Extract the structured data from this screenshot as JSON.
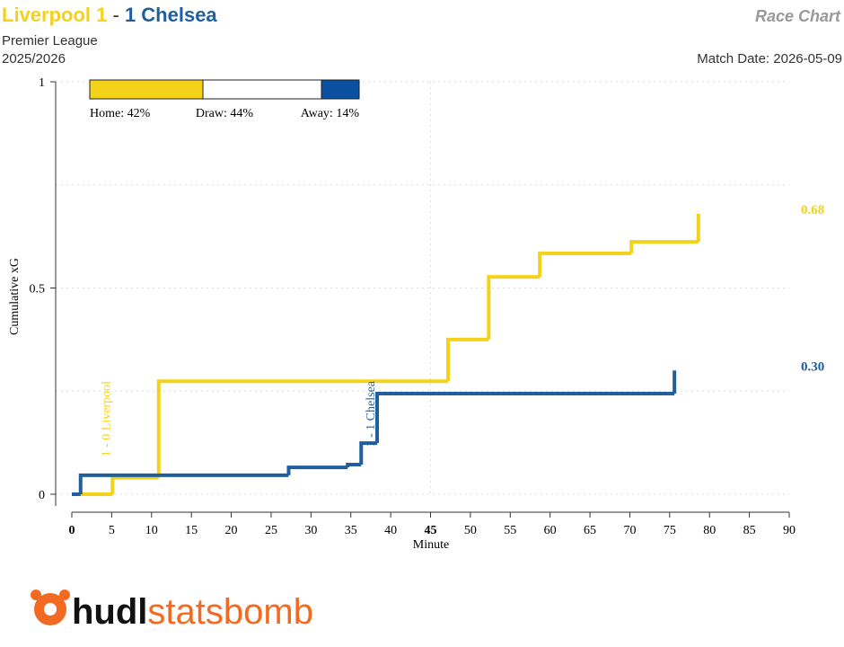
{
  "chart_data": {
    "type": "step",
    "title": {
      "home": "Liverpool 1",
      "separator": "-",
      "away": "1 Chelsea"
    },
    "chart_name": "Race Chart",
    "competition": "Premier League",
    "season": "2025/2026",
    "match_date": "Match Date: 2026-05-09",
    "xlabel": "Minute",
    "ylabel": "Cumulative xG",
    "xlim": [
      0,
      90
    ],
    "ylim": [
      0,
      1
    ],
    "xticks": [
      0,
      5,
      10,
      15,
      20,
      25,
      30,
      35,
      40,
      45,
      50,
      55,
      60,
      65,
      70,
      75,
      80,
      85,
      90
    ],
    "bold_xticks": [
      0,
      45
    ],
    "yticks": [
      0,
      0.5,
      1
    ],
    "ygrid": [
      0,
      0.25,
      0.5,
      0.75,
      1
    ],
    "xgrid": [
      45
    ],
    "series": [
      {
        "name": "Liverpool",
        "color": "#f5d21a",
        "x": [
          0,
          5.1,
          10.9,
          47.2,
          52.3,
          58.7,
          70.2,
          78.6
        ],
        "values": [
          0,
          0.04,
          0.274,
          0.375,
          0.527,
          0.584,
          0.612,
          0.68
        ],
        "value_labels": [
          null,
          null,
          null,
          null,
          null,
          null,
          null,
          "0.68"
        ]
      },
      {
        "name": "Chelsea",
        "color": "#1f5f9e",
        "x": [
          0,
          1.1,
          27.2,
          34.6,
          36.3,
          38.3,
          75.6
        ],
        "values": [
          0,
          0.046,
          0.065,
          0.072,
          0.124,
          0.244,
          0.3
        ],
        "value_labels": [
          null,
          null,
          null,
          null,
          null,
          null,
          "0.30"
        ]
      }
    ],
    "annotations": [
      {
        "text": "1 - 0 Liverpool",
        "x": 5.1,
        "color": "#f5d21a"
      },
      {
        "text": "1 - 1 Chelsea",
        "x": 38.3,
        "color": "#1f5f9e"
      }
    ],
    "win_probability": {
      "labels": [
        "Home:",
        "Draw:",
        "Away:"
      ],
      "values": [
        42,
        44,
        14
      ],
      "value_labels": [
        "42%",
        "44%",
        "14%"
      ],
      "colors": [
        "#f5d21a",
        "#ffffff",
        "#0b4fa0"
      ]
    },
    "logo": [
      "hudl",
      "statsbomb"
    ]
  }
}
